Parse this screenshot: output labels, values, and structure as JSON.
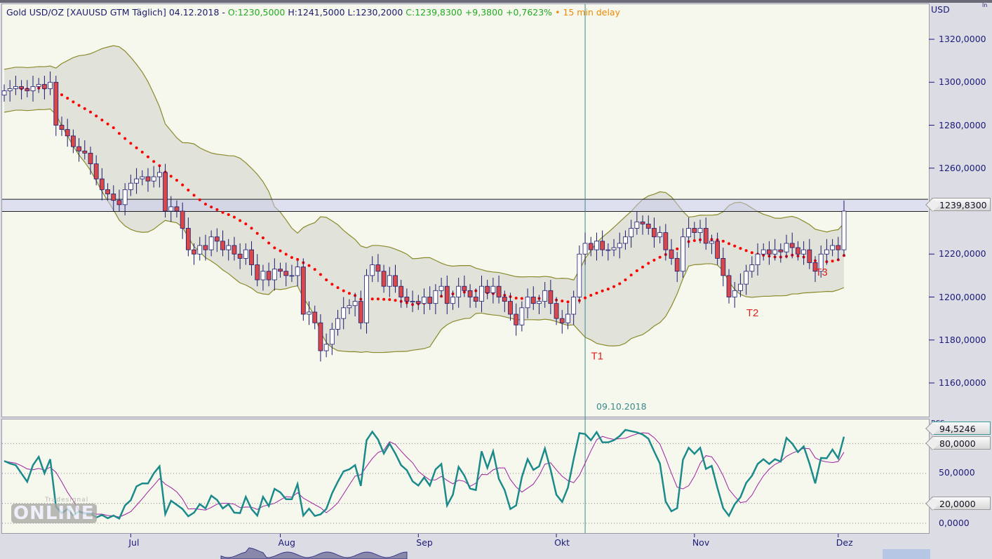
{
  "header": {
    "title": "Gold USD/OZ [XAUUSD GTM Täglich]",
    "date": "04.12.2018 -",
    "open": "O:1230,5000",
    "high": "H:1241,5000",
    "low": "L:1230,2000",
    "close": "C:1239,8300 +9,3800 +0,7623%",
    "delay": "• 15 min delay"
  },
  "currency": "USD",
  "price_tag": "1239,8300",
  "osc_tags": {
    "last": "94,5246",
    "upper": "80,0000",
    "lower": "20,0000",
    "mid": "50,0000",
    "zero": "0,0000",
    "name": "RSS"
  },
  "watermark": {
    "small": "Tradesignal",
    "big": "ONLINE"
  },
  "vline_label": "09.10.2018",
  "colors": {
    "up": "#ffffff",
    "down": "#d8474a",
    "wick": "#1c1c6e",
    "band": "#8a8a2a",
    "bandfill": "#dcdcd4",
    "ma": "#ff0000",
    "fast": "#1a8a8a",
    "slow": "#a020a0"
  },
  "chart_data": {
    "type": "candlestick",
    "title": "Gold USD/OZ [XAUUSD GTM Täglich]",
    "ylim": [
      1145,
      1330
    ],
    "yticks": [
      {
        "v": 1320,
        "l": "1320,0000"
      },
      {
        "v": 1300,
        "l": "1300,0000"
      },
      {
        "v": 1280,
        "l": "1280,0000"
      },
      {
        "v": 1260,
        "l": "1260,0000"
      },
      {
        "v": 1220,
        "l": "1220,0000"
      },
      {
        "v": 1200,
        "l": "1200,0000"
      },
      {
        "v": 1180,
        "l": "1180,0000"
      },
      {
        "v": 1160,
        "l": "1160,0000"
      }
    ],
    "xticks": [
      {
        "i": 22,
        "l": "Jul"
      },
      {
        "i": 48,
        "l": "Aug"
      },
      {
        "i": 72,
        "l": "Sep"
      },
      {
        "i": 96,
        "l": "Okt"
      },
      {
        "i": 120,
        "l": "Nov"
      },
      {
        "i": 145,
        "l": "Dez"
      }
    ],
    "close": [
      1296,
      1297,
      1298,
      1297,
      1296,
      1298,
      1299,
      1297,
      1300,
      1280,
      1278,
      1275,
      1270,
      1268,
      1267,
      1262,
      1255,
      1250,
      1248,
      1245,
      1243,
      1250,
      1253,
      1255,
      1256,
      1254,
      1256,
      1258,
      1240,
      1242,
      1240,
      1232,
      1222,
      1220,
      1224,
      1222,
      1228,
      1226,
      1222,
      1224,
      1220,
      1218,
      1222,
      1215,
      1208,
      1212,
      1208,
      1213,
      1212,
      1210,
      1210,
      1214,
      1192,
      1193,
      1188,
      1175,
      1178,
      1185,
      1190,
      1195,
      1196,
      1198,
      1188,
      1210,
      1215,
      1212,
      1205,
      1210,
      1205,
      1200,
      1198,
      1198,
      1197,
      1200,
      1197,
      1203,
      1205,
      1197,
      1200,
      1205,
      1203,
      1200,
      1198,
      1205,
      1202,
      1205,
      1200,
      1198,
      1192,
      1187,
      1195,
      1200,
      1197,
      1198,
      1203,
      1197,
      1190,
      1188,
      1192,
      1200,
      1220,
      1225,
      1222,
      1226,
      1222,
      1222,
      1223,
      1225,
      1228,
      1232,
      1235,
      1234,
      1232,
      1228,
      1230,
      1222,
      1218,
      1212,
      1228,
      1232,
      1230,
      1232,
      1225,
      1226,
      1218,
      1210,
      1200,
      1203,
      1206,
      1212,
      1215,
      1220,
      1222,
      1220,
      1222,
      1221,
      1225,
      1223,
      1220,
      1222,
      1216,
      1212,
      1220,
      1222,
      1224,
      1222,
      1240
    ],
    "hlines": [
      1245.5,
      1239.83
    ],
    "vline_index": 101,
    "annotations": [
      {
        "i": 103,
        "v": 1171,
        "l": "T1"
      },
      {
        "i": 130,
        "v": 1191,
        "l": "T2"
      },
      {
        "i": 142,
        "v": 1210,
        "l": "T3"
      }
    ],
    "bollinger": {
      "period": 20,
      "dev": 2
    },
    "oscillator": {
      "ylim": [
        0,
        100
      ],
      "levels": [
        20,
        80
      ],
      "k_period": 14,
      "d_period": 3
    }
  }
}
